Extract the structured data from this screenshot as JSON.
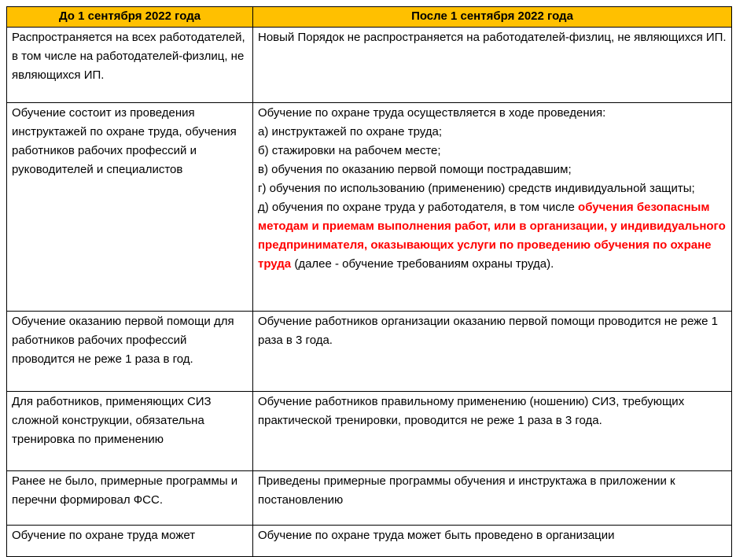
{
  "colors": {
    "header_bg": "#FFC000",
    "border": "#000000",
    "text": "#000000",
    "highlight": "#FF0000"
  },
  "table": {
    "headers": [
      {
        "label": "До 1 сентября 2022 года"
      },
      {
        "label": "После 1 сентября 2022 года"
      }
    ],
    "rows": [
      {
        "left": [
          {
            "text": "Распространяется на всех работодателей, в том числе на работодателей-физлиц, не являющихся ИП."
          }
        ],
        "right": [
          {
            "text": "Новый Порядок не распространяется на работодателей-физлиц, не являющихся ИП."
          }
        ]
      },
      {
        "left": [
          {
            "text": "Обучение состоит из проведения инструктажей по охране труда, обучения работников рабочих профессий и руководителей и специалистов"
          }
        ],
        "right": [
          {
            "text": "Обучение по охране труда осуществляется в ходе проведения:\nа) инструктажей по охране труда;\nб) стажировки на рабочем месте;\nв) обучения по оказанию первой помощи пострадавшим;\nг) обучения по использованию (применению) средств индивидуальной защиты;\nд) обучения по охране труда у работодателя, в том числе "
          },
          {
            "text": "обучения безопасным методам и приемам выполнения работ, или в организации, у индивидуального предпринимателя, оказывающих услуги по проведению обучения по охране труда",
            "style": "red"
          },
          {
            "text": " (далее - обучение требованиям охраны труда)."
          }
        ]
      },
      {
        "left": [
          {
            "text": "Обучение оказанию первой помощи для работников рабочих профессий проводится не реже 1 раза в год."
          }
        ],
        "right": [
          {
            "text": "Обучение работников организации оказанию первой помощи проводится не реже 1 раза в 3 года."
          }
        ]
      },
      {
        "left": [
          {
            "text": "Для работников, применяющих СИЗ сложной конструкции, обязательна тренировка по применению"
          }
        ],
        "right": [
          {
            "text": "Обучение работников правильному применению (ношению) СИЗ, требующих практической тренировки, проводится не реже 1 раза в 3 года."
          }
        ]
      },
      {
        "left": [
          {
            "text": "Ранее не было, примерные программы и перечни формировал ФСС."
          }
        ],
        "right": [
          {
            "text": "Приведены примерные программы обучения и инструктажа в приложении к постановлению"
          }
        ]
      },
      {
        "left": [
          {
            "text": "Обучение по охране труда может"
          }
        ],
        "right": [
          {
            "text": "Обучение по охране труда может быть проведено в организации"
          }
        ]
      }
    ]
  }
}
